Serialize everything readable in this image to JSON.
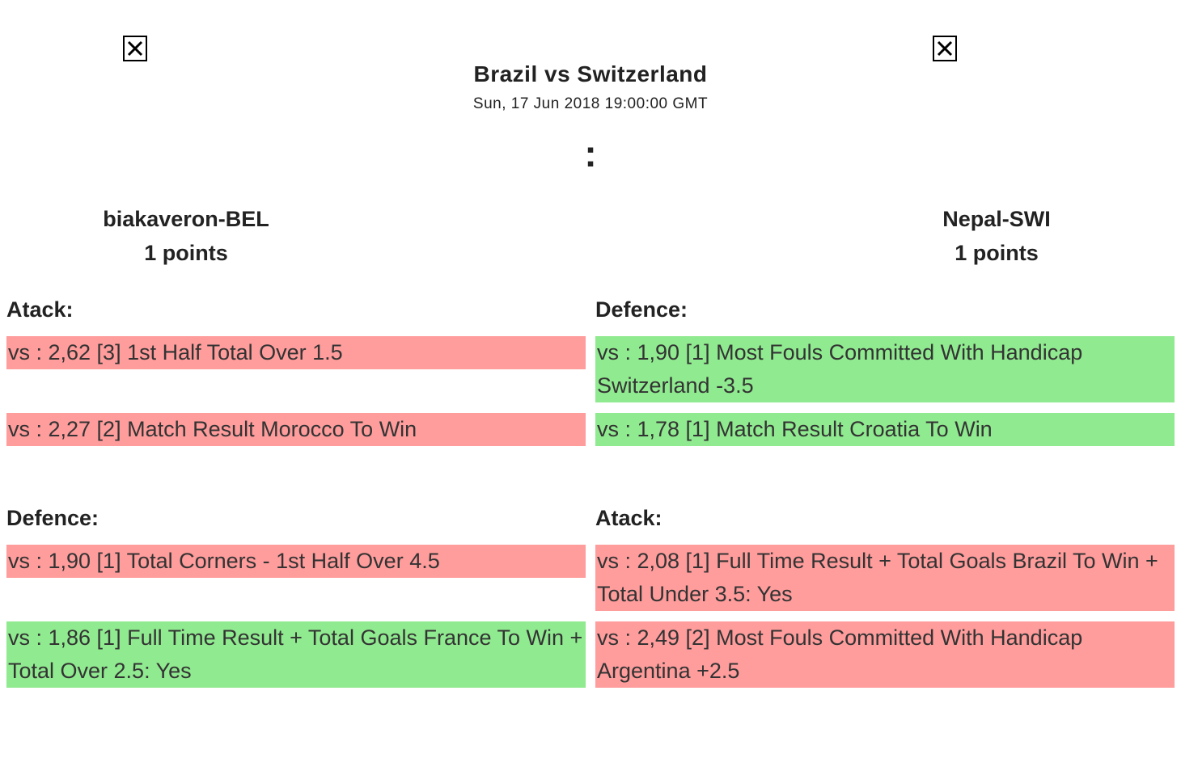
{
  "match": {
    "title": "Brazil vs Switzerland",
    "date": "Sun, 17 Jun 2018 19:00:00 GMT",
    "score_separator": ":"
  },
  "images": {
    "left_icon": "broken-image-icon",
    "right_icon": "broken-image-icon"
  },
  "players": {
    "left": {
      "name": "biakaveron-BEL",
      "points": "1 points"
    },
    "right": {
      "name": "Nepal-SWI",
      "points": "1 points"
    }
  },
  "colors": {
    "lost": "#ff9c9c",
    "won": "#90ea90"
  },
  "sections": {
    "left_top": {
      "title": "Atack:",
      "bets": [
        {
          "text": "vs : 2,62 [3] 1st Half Total Over 1.5",
          "status": "lost"
        },
        {
          "text": "vs : 2,27 [2] Match Result Morocco To Win",
          "status": "lost"
        }
      ]
    },
    "right_top": {
      "title": "Defence:",
      "bets": [
        {
          "text": "vs : 1,90 [1] Most Fouls Committed With Handicap Switzerland -3.5",
          "status": "won"
        },
        {
          "text": "vs : 1,78 [1] Match Result Croatia To Win",
          "status": "won"
        }
      ]
    },
    "left_bottom": {
      "title": "Defence:",
      "bets": [
        {
          "text": "vs : 1,90 [1] Total Corners - 1st Half Over 4.5",
          "status": "lost"
        },
        {
          "text": "vs : 1,86 [1] Full Time Result + Total Goals France To Win + Total Over 2.5: Yes",
          "status": "won"
        }
      ]
    },
    "right_bottom": {
      "title": "Atack:",
      "bets": [
        {
          "text": "vs : 2,08 [1] Full Time Result + Total Goals Brazil To Win + Total Under 3.5: Yes",
          "status": "lost"
        },
        {
          "text": "vs : 2,49 [2] Most Fouls Committed With Handicap Argentina +2.5",
          "status": "lost"
        }
      ]
    }
  }
}
